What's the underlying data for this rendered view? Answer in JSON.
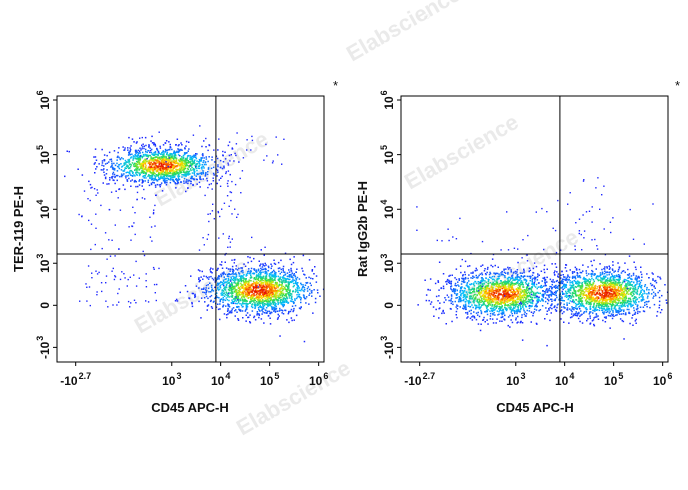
{
  "watermark": {
    "text": "Elabscience",
    "reg": "®"
  },
  "chart_data": [
    {
      "type": "scatter",
      "title": "",
      "xlabel": "CD45 APC-H",
      "ylabel": "TER-119 PE-H",
      "corner_mark": "*",
      "x_ticks": [
        {
          "base": "-10",
          "exp": "2.7",
          "value": -500
        },
        {
          "base": "10",
          "exp": "3",
          "value": 1000
        },
        {
          "base": "10",
          "exp": "4",
          "value": 10000
        },
        {
          "base": "10",
          "exp": "5",
          "value": 100000
        },
        {
          "base": "10",
          "exp": "6",
          "value": 1000000
        }
      ],
      "y_ticks": [
        {
          "base": "-10",
          "exp": "3",
          "value": -1000
        },
        {
          "base": "0",
          "exp": "",
          "value": 0
        },
        {
          "base": "10",
          "exp": "3",
          "value": 1000
        },
        {
          "base": "10",
          "exp": "4",
          "value": 10000
        },
        {
          "base": "10",
          "exp": "5",
          "value": 100000
        },
        {
          "base": "10",
          "exp": "6",
          "value": 1000000
        }
      ],
      "gate": {
        "x": 8000,
        "y": 1500
      },
      "populations": [
        {
          "name": "CD45- TER-119+",
          "x_center": 600,
          "y_center": 65000,
          "share": 0.45
        },
        {
          "name": "CD45+ TER-119-",
          "x_center": 60000,
          "y_center": 250,
          "share": 0.55
        }
      ]
    },
    {
      "type": "scatter",
      "title": "",
      "xlabel": "CD45 APC-H",
      "ylabel": "Rat IgG2b PE-H",
      "corner_mark": "*",
      "x_ticks": [
        {
          "base": "-10",
          "exp": "2.7",
          "value": -500
        },
        {
          "base": "10",
          "exp": "3",
          "value": 1000
        },
        {
          "base": "10",
          "exp": "4",
          "value": 10000
        },
        {
          "base": "10",
          "exp": "5",
          "value": 100000
        },
        {
          "base": "10",
          "exp": "6",
          "value": 1000000
        }
      ],
      "y_ticks": [
        {
          "base": "-10",
          "exp": "3",
          "value": -1000
        },
        {
          "base": "0",
          "exp": "",
          "value": 0
        },
        {
          "base": "10",
          "exp": "3",
          "value": 1000
        },
        {
          "base": "10",
          "exp": "4",
          "value": 10000
        },
        {
          "base": "10",
          "exp": "5",
          "value": 100000
        },
        {
          "base": "10",
          "exp": "6",
          "value": 1000000
        }
      ],
      "gate": {
        "x": 8000,
        "y": 1500
      },
      "populations": [
        {
          "name": "CD45- isotype",
          "x_center": 500,
          "y_center": 180,
          "share": 0.5
        },
        {
          "name": "CD45+ isotype",
          "x_center": 60000,
          "y_center": 200,
          "share": 0.5
        }
      ]
    }
  ]
}
